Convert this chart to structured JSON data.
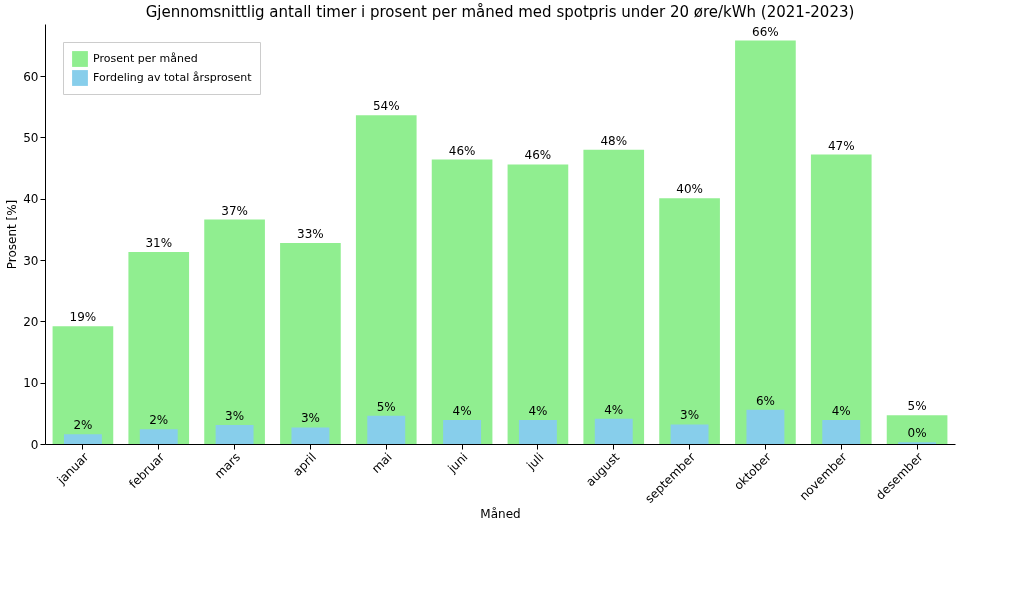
{
  "chart_data": {
    "type": "bar",
    "title": "Gjennomsnittlig antall timer i prosent per måned med spotpris under 20 øre/kWh (2021-2023)",
    "xlabel": "Måned",
    "ylabel": "Prosent [%]",
    "categories": [
      "januar",
      "februar",
      "mars",
      "april",
      "mai",
      "juni",
      "juli",
      "august",
      "september",
      "oktober",
      "november",
      "desember"
    ],
    "series": [
      {
        "name": "Prosent per måned",
        "color": "#90ee90",
        "values": [
          19.2,
          31.3,
          36.6,
          32.8,
          53.6,
          46.4,
          45.6,
          48.0,
          40.1,
          65.8,
          47.2,
          4.7
        ],
        "value_labels": [
          "19%",
          "31%",
          "37%",
          "33%",
          "54%",
          "46%",
          "46%",
          "48%",
          "40%",
          "66%",
          "47%",
          "5%"
        ]
      },
      {
        "name": "Fordeling av total årsprosent",
        "color": "#87ceeb",
        "values": [
          1.6,
          2.4,
          3.1,
          2.7,
          4.6,
          3.9,
          3.9,
          4.1,
          3.2,
          5.6,
          3.9,
          0.3
        ],
        "value_labels": [
          "2%",
          "2%",
          "3%",
          "3%",
          "5%",
          "4%",
          "4%",
          "4%",
          "3%",
          "6%",
          "4%",
          "0%"
        ]
      }
    ],
    "ylim": [
      0,
      68.5
    ],
    "yticks": [
      0,
      10,
      20,
      30,
      40,
      50,
      60
    ],
    "grid": false,
    "legend": "top left"
  }
}
